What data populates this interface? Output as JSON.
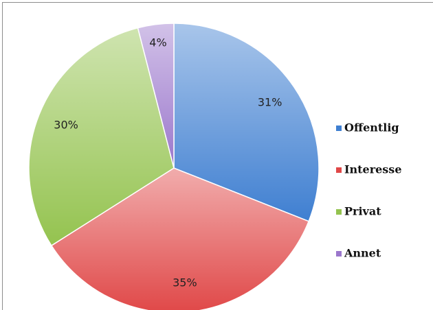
{
  "chart_data": {
    "type": "pie",
    "categories": [
      "Offentlig",
      "Interesse",
      "Privat",
      "Annet"
    ],
    "values": [
      31,
      35,
      30,
      4
    ],
    "value_labels": [
      "31%",
      "35%",
      "30%",
      "4%"
    ],
    "colors": [
      "#3f7fd1",
      "#e04848",
      "#94c34f",
      "#9b77cc"
    ],
    "legend": "right"
  }
}
